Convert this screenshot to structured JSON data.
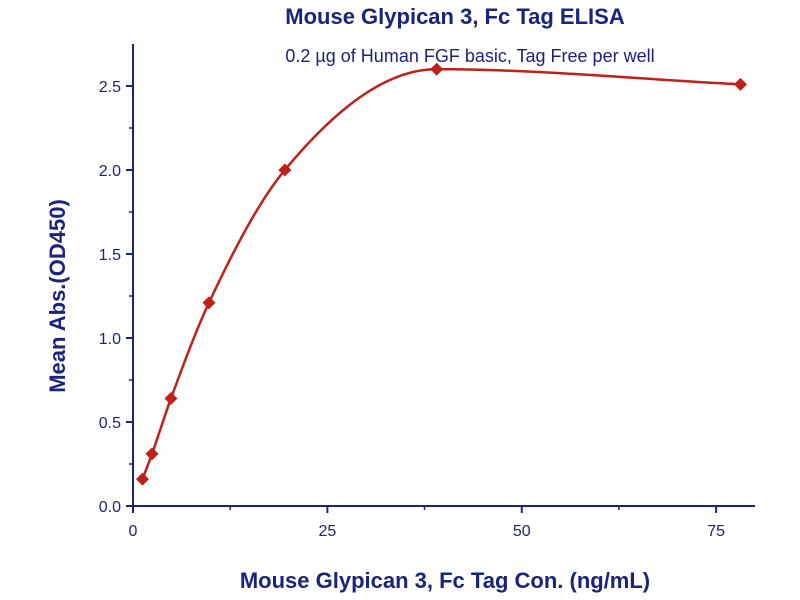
{
  "chart_data": {
    "type": "scatter",
    "title": "Mouse Glypican 3, Fc Tag ELISA",
    "subtitle": "0.2 µg of Human FGF basic, Tag Free per well",
    "xlabel": "Mouse Glypican 3, Fc Tag Con. (ng/mL)",
    "ylabel": "Mean Abs.(OD450)",
    "xlim": [
      0,
      80
    ],
    "ylim": [
      0,
      2.75
    ],
    "x_ticks": [
      0,
      25,
      50,
      75
    ],
    "x_tick_labels": [
      "0",
      "25",
      "50",
      "75"
    ],
    "y_ticks": [
      0,
      0.5,
      1.0,
      1.5,
      2.0,
      2.5
    ],
    "y_tick_labels": [
      "0.0",
      "0.5",
      "1.0",
      "1.5",
      "2.0",
      "2.5"
    ],
    "grid": false,
    "legend": "none",
    "series": [
      {
        "x": [
          1.22,
          2.44,
          4.88,
          9.77,
          19.53,
          39.06,
          78.13
        ],
        "y": [
          0.16,
          0.31,
          0.64,
          1.21,
          2.0,
          2.6,
          2.51
        ],
        "color": "#c0201a",
        "marker": "diamond",
        "fit": "four-parameter logistic curve"
      }
    ],
    "text_color": "#1a237e",
    "axis_color": "#1a237e"
  }
}
